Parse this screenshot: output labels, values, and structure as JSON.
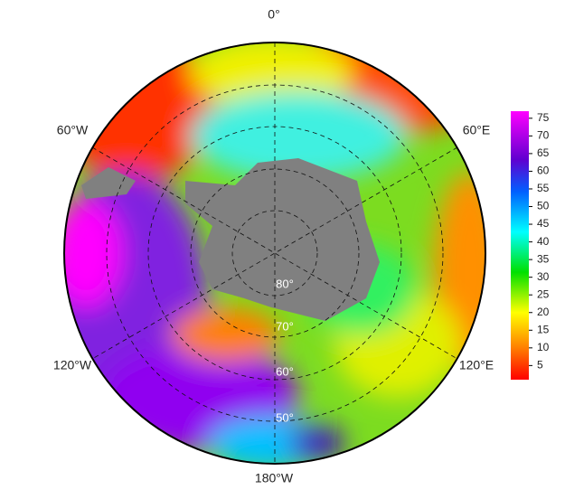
{
  "map": {
    "longitude_labels": [
      "0°",
      "60°E",
      "120°E",
      "180°W",
      "120°W",
      "60°W"
    ],
    "latitude_labels": [
      "80°",
      "70°",
      "60°",
      "50°"
    ],
    "colorbar": {
      "range": [
        1,
        77
      ],
      "ticks": [
        5,
        10,
        15,
        20,
        25,
        30,
        35,
        40,
        45,
        50,
        55,
        60,
        65,
        70,
        75
      ]
    }
  }
}
